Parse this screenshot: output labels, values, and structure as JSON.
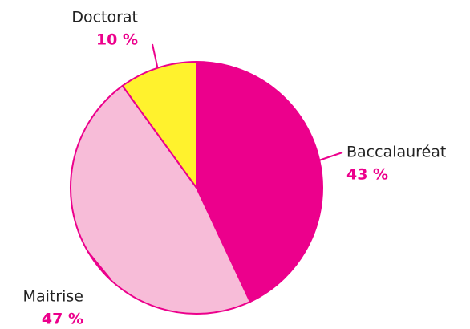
{
  "chart_data": {
    "type": "pie",
    "categories": [
      "Baccalauréat",
      "Maitrise",
      "Doctorat"
    ],
    "values": [
      43,
      47,
      10
    ],
    "value_labels": [
      "43 %",
      "47 %",
      "10 %"
    ],
    "colors": [
      "#ec008c",
      "#f7bcd8",
      "#fff22d"
    ],
    "start_angle": 0,
    "direction": "clockwise"
  }
}
